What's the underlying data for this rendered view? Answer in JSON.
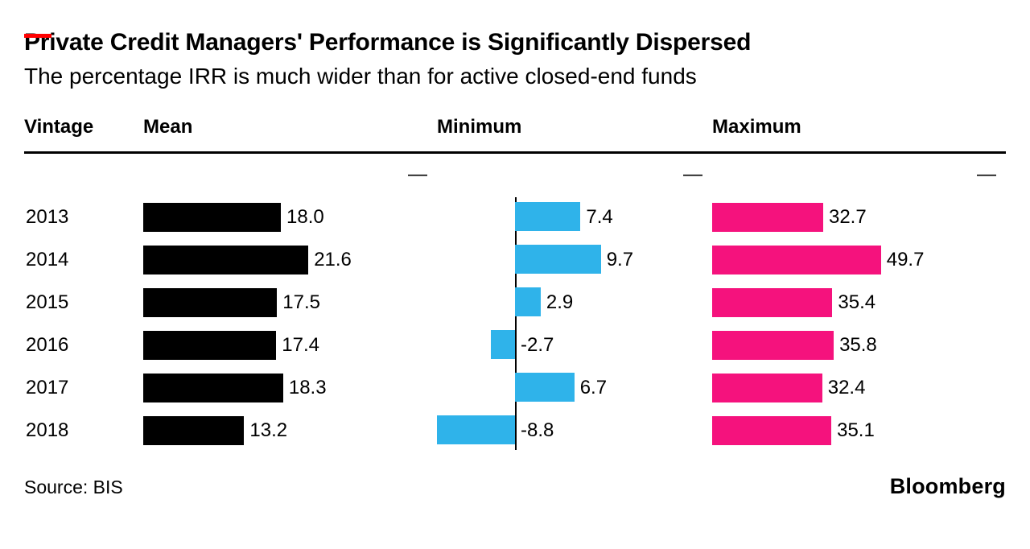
{
  "header": {
    "title": "Private Credit Managers' Performance is Significantly Dispersed",
    "subtitle": "The percentage IRR is much wider than for active closed-end funds"
  },
  "columns": {
    "vintage": "Vintage",
    "mean": "Mean",
    "minimum": "Minimum",
    "maximum": "Maximum"
  },
  "axis_dash": "—",
  "footer": {
    "source": "Source: BIS",
    "brand": "Bloomberg"
  },
  "colors": {
    "mean": "#000000",
    "minimum": "#2fb3ea",
    "maximum": "#f5127d",
    "accent": "#ff0000",
    "rule": "#000000"
  },
  "chart_data": {
    "type": "bar",
    "orientation": "horizontal",
    "title": "Private Credit Managers' Performance is Significantly Dispersed",
    "subtitle": "The percentage IRR is much wider than for active closed-end funds",
    "categories": [
      "2013",
      "2014",
      "2015",
      "2016",
      "2017",
      "2018"
    ],
    "series": [
      {
        "name": "Mean",
        "color": "#000000",
        "values": [
          18.0,
          21.6,
          17.5,
          17.4,
          18.3,
          13.2
        ]
      },
      {
        "name": "Minimum",
        "color": "#2fb3ea",
        "values": [
          7.4,
          9.7,
          2.9,
          -2.7,
          6.7,
          -8.8
        ]
      },
      {
        "name": "Maximum",
        "color": "#f5127d",
        "values": [
          32.7,
          49.7,
          35.4,
          35.8,
          32.4,
          35.1
        ]
      }
    ],
    "value_format": "one-decimal",
    "value_unit": "% IRR",
    "xlabel": "",
    "ylabel": "Vintage",
    "grid": false,
    "legend_position": "column-headers",
    "minimum_axis_zero_line": true
  }
}
